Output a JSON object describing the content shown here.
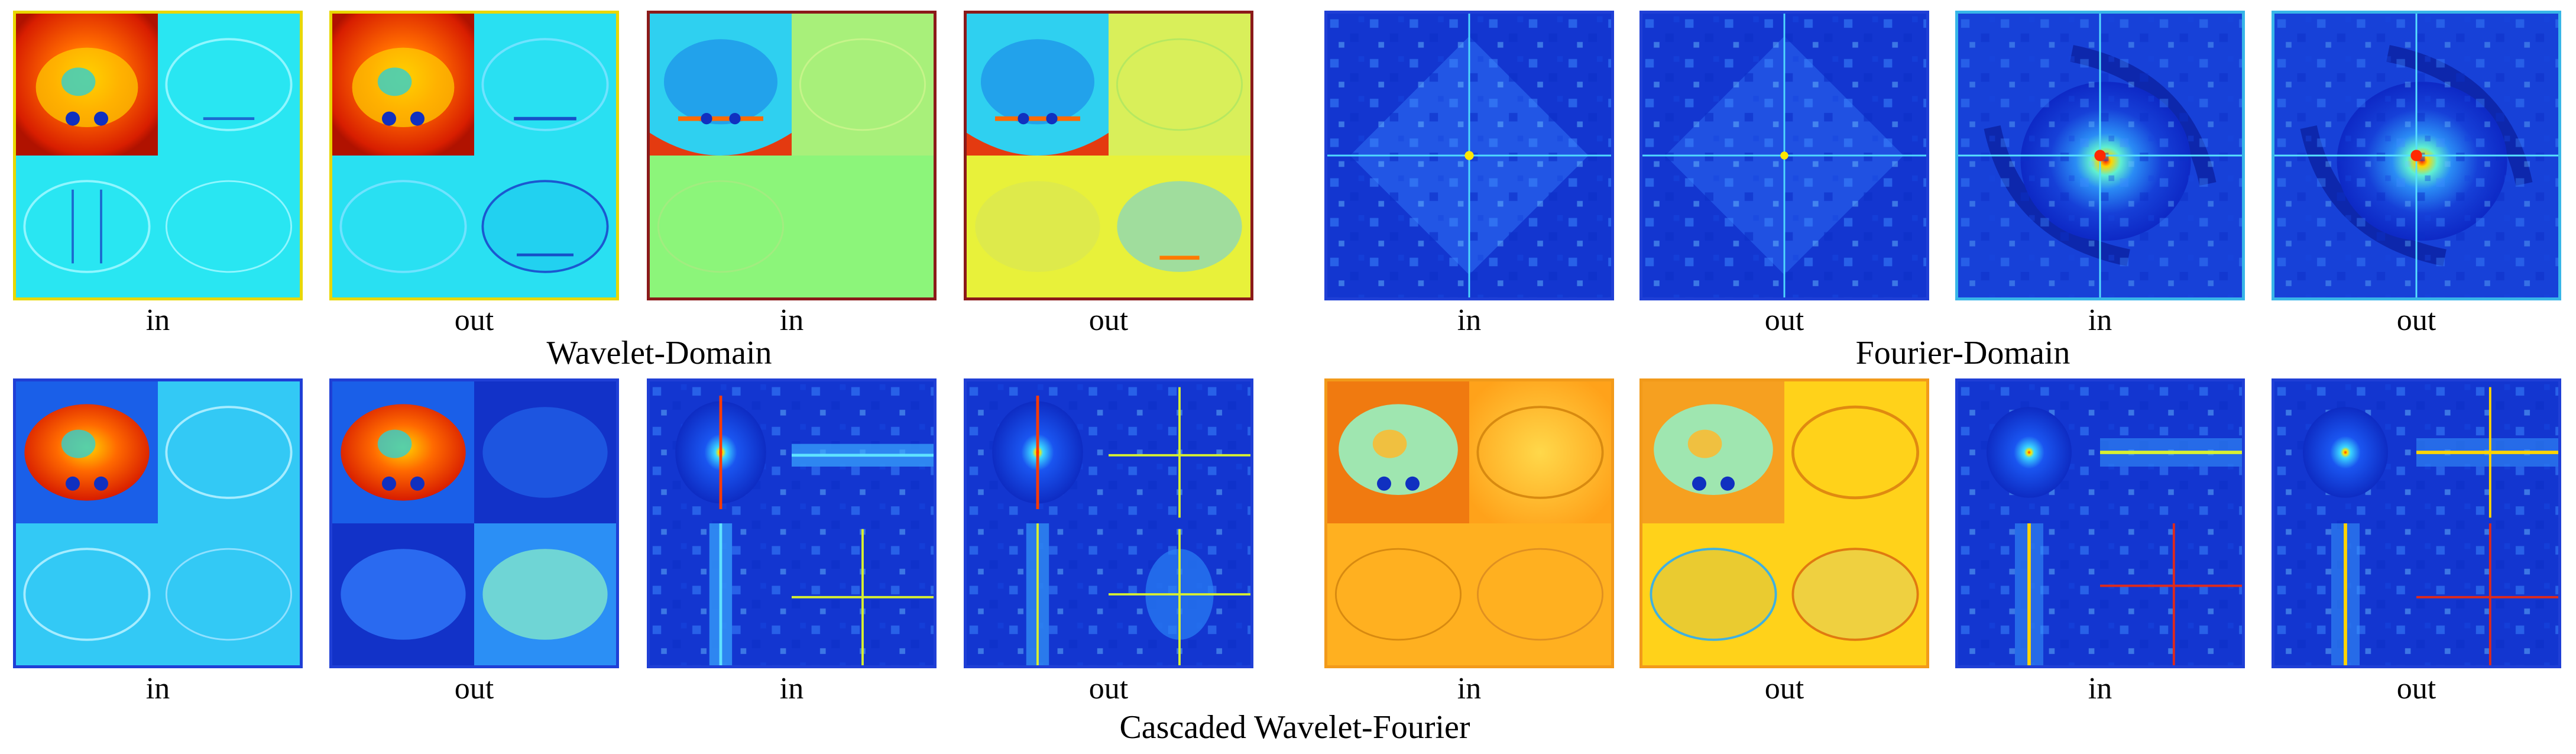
{
  "labels": {
    "in": "in",
    "out": "out"
  },
  "groups": {
    "wavelet": "Wavelet-Domain",
    "fourier": "Fourier-Domain",
    "cascaded": "Cascaded Wavelet-Fourier"
  },
  "colors": {
    "frame_yellow": "#e8d700",
    "frame_darkred": "#8b1a1a",
    "frame_cyan": "#38b6e8",
    "frame_blue": "#1f3fd6",
    "frame_orange": "#f29a1a"
  }
}
